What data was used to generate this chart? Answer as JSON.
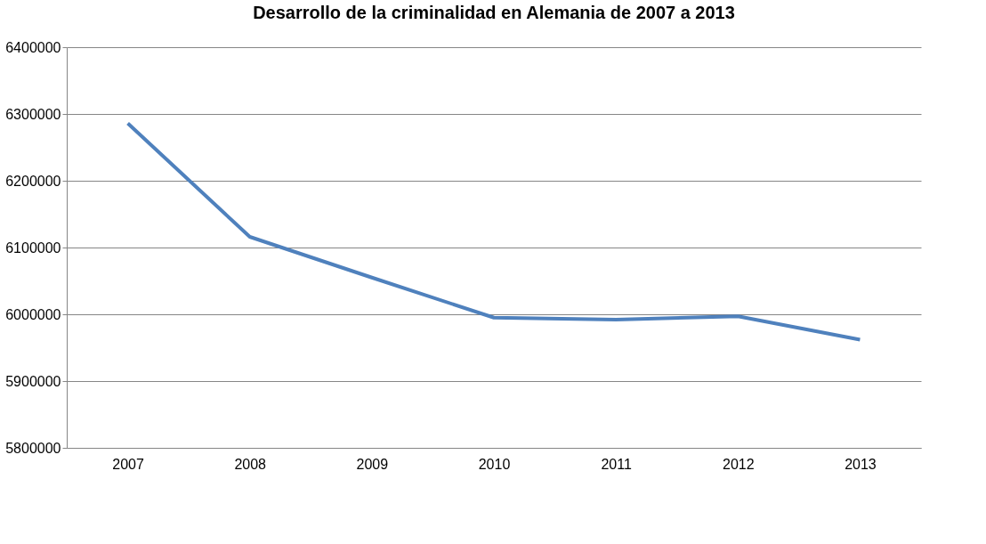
{
  "chart_data": {
    "type": "line",
    "title": "Desarrollo de la criminalidad en Alemania de 2007 a 2013",
    "categories": [
      "2007",
      "2008",
      "2009",
      "2010",
      "2011",
      "2012",
      "2013"
    ],
    "series": [
      {
        "color": "#4f81bd",
        "values": [
          6286000,
          6116000,
          6055000,
          5995000,
          5992000,
          5997000,
          5962000
        ]
      }
    ],
    "ylim": [
      5800000,
      6400000
    ],
    "yticks": [
      5800000,
      5900000,
      6000000,
      6100000,
      6200000,
      6300000,
      6400000
    ],
    "grid": "y",
    "marker": "none",
    "line_style": "solid"
  }
}
